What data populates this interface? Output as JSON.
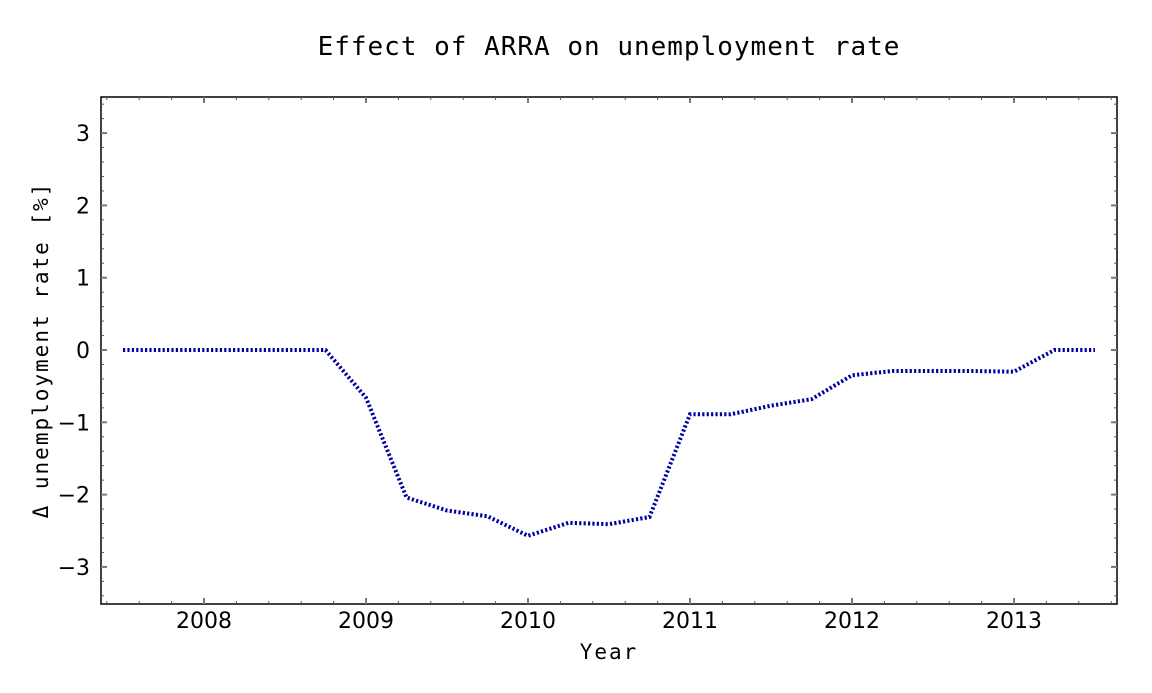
{
  "chart_data": {
    "type": "line",
    "title": "Effect of ARRA on unemployment rate",
    "xlabel": "Year",
    "ylabel": "Δ unemployment rate [%]",
    "xlim": [
      2007.38,
      2013.62
    ],
    "ylim": [
      -3.5,
      3.5
    ],
    "xticks": [
      2008,
      2009,
      2010,
      2011,
      2012,
      2013
    ],
    "yticks": [
      -3,
      -2,
      -1,
      0,
      1,
      2,
      3
    ],
    "xtick_labels": [
      "2008",
      "2009",
      "2010",
      "2011",
      "2012",
      "2013"
    ],
    "ytick_labels": [
      "−3",
      "−2",
      "−1",
      "0",
      "1",
      "2",
      "3"
    ],
    "grid": false,
    "legend": null,
    "series": [
      {
        "name": "Effect of ARRA",
        "color": "#0000a0",
        "style": "dotted",
        "x": [
          2007.5,
          2007.75,
          2008.0,
          2008.25,
          2008.5,
          2008.75,
          2009.0,
          2009.25,
          2009.5,
          2009.75,
          2010.0,
          2010.25,
          2010.5,
          2010.75,
          2011.0,
          2011.25,
          2011.5,
          2011.75,
          2012.0,
          2012.25,
          2012.5,
          2012.75,
          2013.0,
          2013.25,
          2013.5
        ],
        "values": [
          0,
          0,
          0,
          0,
          0,
          0,
          -0.66,
          -2.04,
          -2.22,
          -2.3,
          -2.57,
          -2.39,
          -2.41,
          -2.31,
          -0.89,
          -0.89,
          -0.77,
          -0.68,
          -0.35,
          -0.29,
          -0.29,
          -0.29,
          -0.3,
          0,
          0
        ]
      }
    ]
  }
}
